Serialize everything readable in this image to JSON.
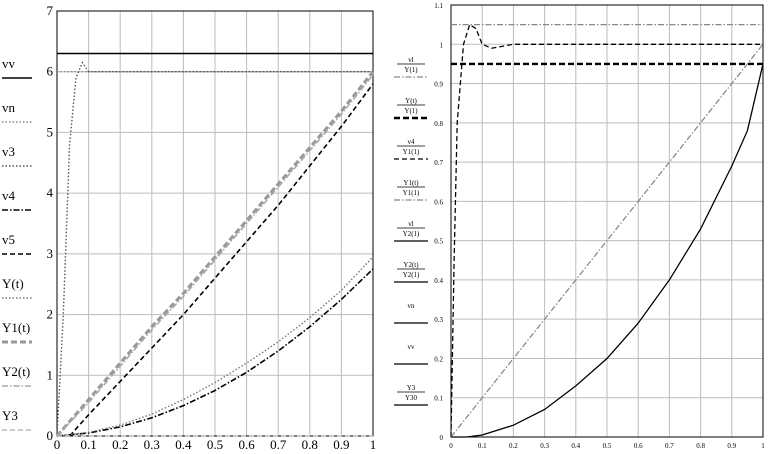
{
  "chart_data": [
    {
      "type": "line",
      "xlim": [
        0,
        1
      ],
      "ylim": [
        0,
        7
      ],
      "xticks": [
        "0",
        "0.1",
        "0.2",
        "0.3",
        "0.4",
        "0.5",
        "0.6",
        "0.7",
        "0.8",
        "0.9",
        "1"
      ],
      "yticks": [
        "0",
        "1",
        "2",
        "3",
        "4",
        "5",
        "6",
        "7"
      ],
      "grid": true,
      "legend_position": "left",
      "legend": [
        "vv",
        "vn",
        "v3",
        "v4",
        "v5",
        "Y(t)",
        "Y1(t)",
        "Y2(t)",
        "Y3"
      ],
      "series": [
        {
          "name": "vv",
          "x": [
            0,
            1
          ],
          "y": [
            6.3,
            6.3
          ],
          "color": "#000000",
          "style": "solid"
        },
        {
          "name": "vn",
          "x": [
            0,
            1
          ],
          "y": [
            6,
            6
          ],
          "color": "#888888",
          "style": "dotted"
        },
        {
          "name": "v3",
          "x": [
            0,
            0.02,
            0.04,
            0.06,
            0.08,
            0.1,
            0.15,
            1
          ],
          "y": [
            0,
            2,
            4.8,
            5.9,
            6.15,
            6.0,
            6.0,
            6.0
          ],
          "color": "#555555",
          "style": "dotted"
        },
        {
          "name": "v4",
          "x": [
            0,
            0.1,
            0.2,
            0.3,
            0.4,
            0.5,
            0.6,
            0.7,
            0.8,
            0.9,
            1
          ],
          "y": [
            0,
            0.05,
            0.15,
            0.3,
            0.5,
            0.75,
            1.05,
            1.4,
            1.8,
            2.25,
            2.75
          ],
          "color": "#000000",
          "style": "dashdot"
        },
        {
          "name": "v5",
          "x": [
            0.04,
            0.1,
            0.2,
            0.3,
            0.4,
            0.5,
            0.6,
            0.7,
            0.8,
            0.9,
            1
          ],
          "y": [
            0,
            0.35,
            0.9,
            1.45,
            2.0,
            2.6,
            3.2,
            3.8,
            4.45,
            5.1,
            5.8
          ],
          "color": "#000000",
          "style": "dashed"
        },
        {
          "name": "Y(t)",
          "x": [
            0,
            0.1,
            0.2,
            0.3,
            0.4,
            0.5,
            0.6,
            0.7,
            0.8,
            0.9,
            1
          ],
          "y": [
            0,
            0.06,
            0.18,
            0.36,
            0.6,
            0.88,
            1.2,
            1.55,
            1.95,
            2.4,
            2.95
          ],
          "color": "#777777",
          "style": "dotted"
        },
        {
          "name": "Y1(t)",
          "x": [
            0,
            0.1,
            0.2,
            0.3,
            0.4,
            0.5,
            0.6,
            0.7,
            0.8,
            0.9,
            1
          ],
          "y": [
            0,
            0.6,
            1.2,
            1.8,
            2.35,
            2.95,
            3.55,
            4.15,
            4.75,
            5.35,
            6.0
          ],
          "color": "#999999",
          "style": "thickdash"
        },
        {
          "name": "Y2(t)",
          "x": [
            0,
            0.1,
            0.2,
            0.3,
            0.4,
            0.5,
            0.6,
            0.7,
            0.8,
            0.9,
            1
          ],
          "y": [
            0,
            0.55,
            1.15,
            1.75,
            2.3,
            2.9,
            3.5,
            4.1,
            4.7,
            5.3,
            5.95
          ],
          "color": "#aaaaaa",
          "style": "dashdot"
        },
        {
          "name": "Y3",
          "x": [
            0,
            1
          ],
          "y": [
            0,
            0
          ],
          "color": "#bbbbbb",
          "style": "dashed"
        }
      ]
    },
    {
      "type": "line",
      "xlim": [
        0,
        1
      ],
      "ylim": [
        0,
        1.1
      ],
      "xticks": [
        "0",
        "0.1",
        "0.2",
        "0.3",
        "0.4",
        "0.5",
        "0.6",
        "0.7",
        "0.8",
        "0.9",
        "1"
      ],
      "yticks": [
        "0",
        "0.1",
        "0.2",
        "0.3",
        "0.4",
        "0.5",
        "0.6",
        "0.7",
        "0.8",
        "0.9",
        "1",
        "1.1"
      ],
      "grid": true,
      "legend_position": "left",
      "legend": [
        {
          "num": "vl",
          "den": "Y(1)"
        },
        {
          "num": "Y(t)",
          "den": "Y(1)"
        },
        {
          "num": "v4",
          "den": "Y1(1)"
        },
        {
          "num": "Y1(t)",
          "den": "Y1(1)"
        },
        {
          "num": "vl",
          "den": "Y2(1)"
        },
        {
          "num": "Y2(t)",
          "den": "Y2(1)"
        },
        {
          "num": "vn",
          "den": ""
        },
        {
          "num": "vv",
          "den": ""
        },
        {
          "num": "Y3",
          "den": "Y3<sub>0</sub>"
        }
      ],
      "series": [
        {
          "name": "vv",
          "x": [
            0,
            1
          ],
          "y": [
            1.05,
            1.05
          ],
          "color": "#888888",
          "style": "dashdot"
        },
        {
          "name": "vn",
          "x": [
            0,
            1
          ],
          "y": [
            0.95,
            0.95
          ],
          "color": "#000000",
          "style": "thickdash"
        },
        {
          "name": "Y(t)",
          "x": [
            0,
            0.01,
            0.02,
            0.04,
            0.06,
            0.08,
            0.1,
            0.13,
            0.2,
            1
          ],
          "y": [
            0,
            0.45,
            0.8,
            1.0,
            1.05,
            1.04,
            1.0,
            0.99,
            1.0,
            1.0
          ],
          "color": "#000000",
          "style": "dashed"
        },
        {
          "name": "Y1(t)",
          "x": [
            0,
            0.1,
            0.2,
            0.3,
            0.4,
            0.5,
            0.6,
            0.7,
            0.8,
            0.9,
            1
          ],
          "y": [
            0,
            0.1,
            0.2,
            0.3,
            0.4,
            0.5,
            0.6,
            0.7,
            0.8,
            0.9,
            1.0
          ],
          "color": "#888888",
          "style": "dashdot"
        },
        {
          "name": "Y2(t)",
          "x": [
            0,
            0.05,
            0.1,
            0.2,
            0.3,
            0.4,
            0.5,
            0.6,
            0.7,
            0.8,
            0.9,
            0.95,
            1
          ],
          "y": [
            0,
            0,
            0.005,
            0.03,
            0.07,
            0.13,
            0.2,
            0.29,
            0.4,
            0.53,
            0.69,
            0.78,
            0.95
          ],
          "color": "#000000",
          "style": "solid"
        }
      ]
    }
  ]
}
